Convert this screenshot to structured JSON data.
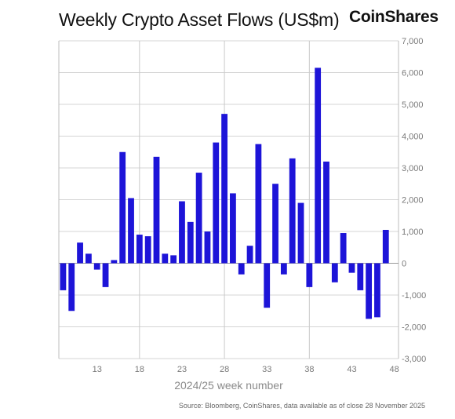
{
  "chart_data": {
    "type": "bar",
    "title": "Weekly Crypto Asset Flows (US$m)",
    "xlabel": "2024/25 week number",
    "ylabel": "",
    "ylim": [
      -3000,
      7000
    ],
    "yticks": [
      "7,000",
      "6,000",
      "5,000",
      "4,000",
      "3,000",
      "2,000",
      "1,000",
      "0",
      "-1,000",
      "-2,000",
      "-3,000"
    ],
    "xticks": [
      "13",
      "18",
      "23",
      "28",
      "33",
      "38",
      "43",
      "48"
    ],
    "x": [
      9,
      10,
      11,
      12,
      13,
      14,
      15,
      16,
      17,
      18,
      19,
      20,
      21,
      22,
      23,
      24,
      25,
      26,
      27,
      28,
      29,
      30,
      31,
      32,
      33,
      34,
      35,
      36,
      37,
      38,
      39,
      40,
      41,
      42,
      43,
      44,
      45,
      46,
      47,
      48
    ],
    "values": [
      -850,
      -1500,
      650,
      300,
      -200,
      -750,
      100,
      3500,
      2050,
      900,
      850,
      3350,
      300,
      250,
      1950,
      1300,
      2850,
      1000,
      3800,
      4700,
      2200,
      -350,
      550,
      3750,
      -1400,
      2500,
      -350,
      3300,
      1900,
      -750,
      6150,
      3200,
      -600,
      950,
      -300,
      -850,
      -1750,
      -1700,
      1050,
      0
    ],
    "grid": true,
    "y_axis_side": "right",
    "bar_color": "#1d14d8"
  },
  "brand": {
    "logo_text": "CoinShares"
  },
  "source": "Source: Bloomberg, CoinShares, data available as of close 28 November 2025"
}
